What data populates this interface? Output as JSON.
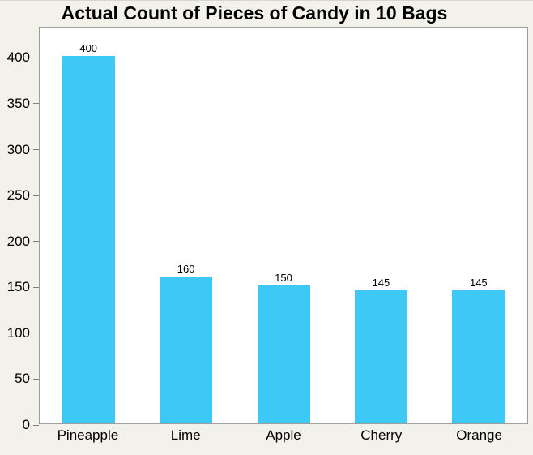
{
  "page": {
    "background_color": "#f2f1ea"
  },
  "chart_data": {
    "type": "bar",
    "title": "Actual Count of Pieces of Candy in 10 Bags",
    "categories": [
      "Pineapple",
      "Lime",
      "Apple",
      "Cherry",
      "Orange"
    ],
    "values": [
      400,
      160,
      150,
      145,
      145
    ],
    "bar_value_labels": [
      "400",
      "160",
      "150",
      "145",
      "145"
    ],
    "xlabel": "",
    "ylabel": "",
    "ylim": [
      0,
      433
    ],
    "yticks": [
      0,
      50,
      100,
      150,
      200,
      250,
      300,
      350,
      400
    ],
    "grid": false,
    "legend": false,
    "bar_color": "#3dc8f6",
    "plot_background": "#ffffff",
    "plot_border_color": "#9e9e9e",
    "text_color": "#000000"
  }
}
